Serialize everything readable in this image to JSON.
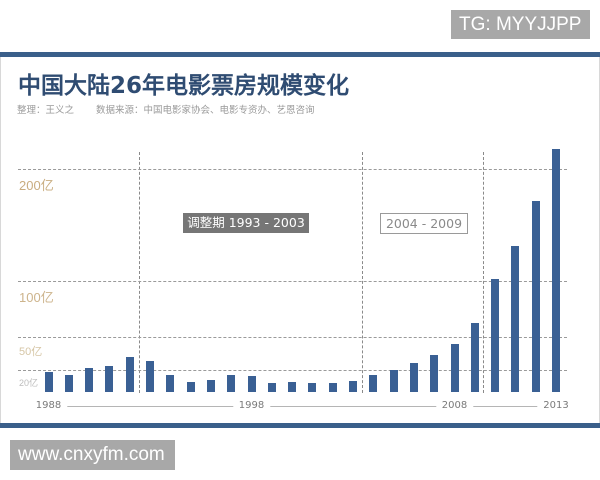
{
  "watermarks": {
    "top": "TG: MYYJJPP",
    "bottom": "www.cnxyfm.com"
  },
  "header": {
    "title": "中国大陆26年电影票房规模变化",
    "credit": "整理：王义之",
    "source": "数据来源：中国电影家协会、电影专资办、艺恩咨询"
  },
  "colors": {
    "accent_bar": "#3a5f8a",
    "bar": "#3a6094",
    "title": "#2f4c72",
    "ytick_200": "#c9ad80",
    "ytick_100": "#cdb48c",
    "ytick_50": "#d6c6a6",
    "ytick_20": "#bdbdbd",
    "period1_bg": "#767676"
  },
  "chart_data": {
    "type": "bar",
    "title": "中国大陆26年电影票房规模变化",
    "subtitle": "整理：王义之　数据来源：中国电影家协会、电影专资办、艺恩咨询",
    "xlabel": "",
    "ylabel": "",
    "categories": [
      "1988",
      "1989",
      "1990",
      "1991",
      "1992",
      "1993",
      "1994",
      "1995",
      "1996",
      "1997",
      "1998",
      "1999",
      "2000",
      "2001",
      "2002",
      "2003",
      "2004",
      "2005",
      "2006",
      "2007",
      "2008",
      "2009",
      "2010",
      "2011",
      "2012",
      "2013"
    ],
    "values": [
      17.9,
      15.2,
      22.0,
      23.6,
      31.9,
      28.0,
      15.2,
      9.8,
      11.6,
      16.0,
      14.9,
      8.7,
      9.6,
      8.7,
      8.9,
      10.1,
      15.2,
      20.5,
      26.2,
      33.3,
      43.4,
      62.1,
      101.7,
      131.2,
      170.7,
      217.7
    ],
    "unit": "亿",
    "ylim": [
      0,
      220
    ],
    "grid": true,
    "yticks": [
      {
        "value": 200,
        "label": "200亿",
        "size": 13,
        "color": "#c9ad80"
      },
      {
        "value": 100,
        "label": "100亿",
        "size": 13,
        "color": "#cdb48c"
      },
      {
        "value": 50,
        "label": "50亿",
        "size": 11,
        "color": "#d6c6a6"
      },
      {
        "value": 20,
        "label": "20亿",
        "size": 9,
        "color": "#bdbdbd"
      }
    ],
    "xtick_labels": [
      {
        "label": "1988",
        "index": 0
      },
      {
        "label": "1998",
        "index": 10
      },
      {
        "label": "2008",
        "index": 20
      },
      {
        "label": "2013",
        "index": 25
      }
    ],
    "annotations": [
      {
        "label": "调整期 1993 - 2003",
        "from": "1993",
        "to": "2003",
        "style": "filled"
      },
      {
        "label": "2004 - 2009",
        "from": "2004",
        "to": "2009",
        "style": "outlined"
      }
    ],
    "period_dividers": [
      "1992/1993",
      "2003/2004",
      "2009/2010"
    ],
    "legend": null
  }
}
